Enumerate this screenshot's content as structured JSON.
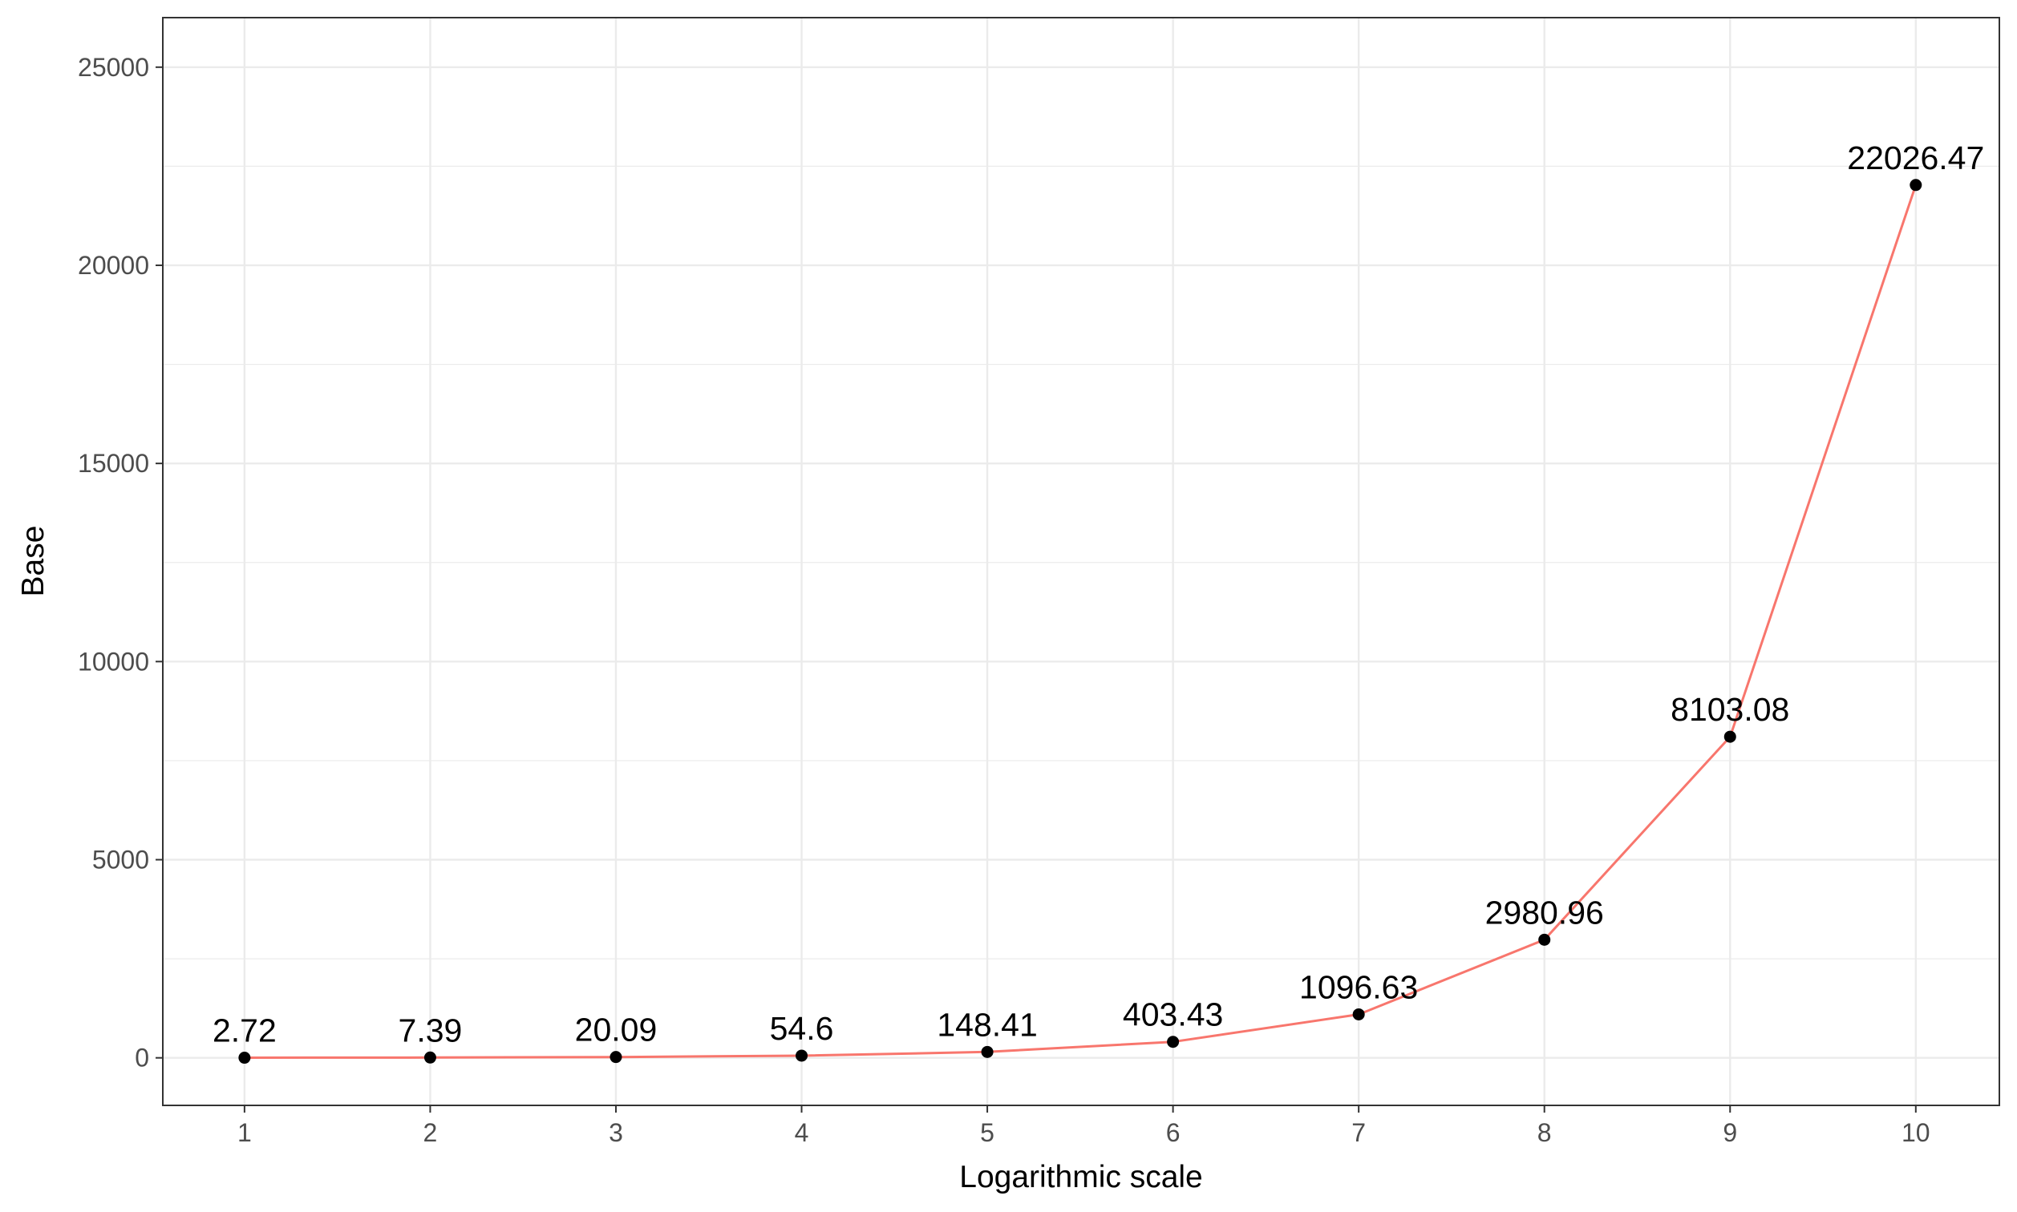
{
  "chart_data": {
    "type": "line",
    "title": "",
    "xlabel": "Logarithmic scale",
    "ylabel": "Base",
    "x": [
      1,
      2,
      3,
      4,
      5,
      6,
      7,
      8,
      9,
      10
    ],
    "series": [
      {
        "values": [
          2.72,
          7.39,
          20.09,
          54.6,
          148.41,
          403.43,
          1096.63,
          2980.96,
          8103.08,
          22026.47
        ],
        "labels": [
          "2.72",
          "7.39",
          "20.09",
          "54.6",
          "148.41",
          "403.43",
          "1096.63",
          "2980.96",
          "8103.08",
          "22026.47"
        ],
        "color": "#f8766d",
        "point_color": "#000000"
      }
    ],
    "xticks": [
      1,
      2,
      3,
      4,
      5,
      6,
      7,
      8,
      9,
      10
    ],
    "xtick_labels": [
      "1",
      "2",
      "3",
      "4",
      "5",
      "6",
      "7",
      "8",
      "9",
      "10"
    ],
    "yticks": [
      0,
      5000,
      10000,
      15000,
      20000,
      25000
    ],
    "ytick_labels": [
      "0",
      "5000",
      "10000",
      "15000",
      "20000",
      "25000"
    ],
    "xlim": [
      0.56,
      10.45
    ],
    "ylim": [
      -1200,
      26250
    ],
    "grid": true,
    "legend": "none",
    "panel_border_color": "#333333",
    "grid_color": "#ebebeb"
  }
}
